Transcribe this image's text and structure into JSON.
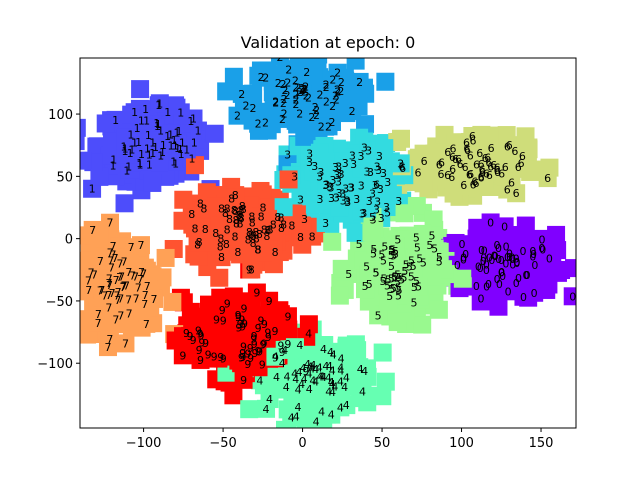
{
  "chart_data": {
    "type": "scatter",
    "title": "Validation at epoch: 0",
    "xlabel": "",
    "ylabel": "",
    "xlim": [
      -140,
      172
    ],
    "ylim": [
      -152,
      145
    ],
    "xticks": [
      -100,
      -50,
      0,
      50,
      100,
      150
    ],
    "yticks": [
      -100,
      -50,
      0,
      50,
      100
    ],
    "xtick_labels": [
      "−100",
      "−50",
      "0",
      "50",
      "100",
      "150"
    ],
    "ytick_labels": [
      "−100",
      "−50",
      "0",
      "50",
      "100"
    ],
    "grid": false,
    "series": [
      {
        "label": "0",
        "color": "#8000ff",
        "center": [
          128,
          -20
        ],
        "spread": [
          28,
          24
        ],
        "points": 60
      },
      {
        "label": "1",
        "color": "#4d4dfb",
        "center": [
          -95,
          75
        ],
        "spread": [
          30,
          25
        ],
        "points": 60
      },
      {
        "label": "2",
        "color": "#1aa0e8",
        "center": [
          0,
          115
        ],
        "spread": [
          30,
          25
        ],
        "points": 60
      },
      {
        "label": "3",
        "color": "#33dbe0",
        "center": [
          25,
          45
        ],
        "spread": [
          30,
          28
        ],
        "points": 60
      },
      {
        "label": "4",
        "color": "#66ffb2",
        "center": [
          10,
          -110
        ],
        "spread": [
          28,
          28
        ],
        "points": 60
      },
      {
        "label": "5",
        "color": "#99f98f",
        "center": [
          60,
          -25
        ],
        "spread": [
          25,
          32
        ],
        "points": 60
      },
      {
        "label": "6",
        "color": "#cfdd7a",
        "center": [
          105,
          60
        ],
        "spread": [
          32,
          20
        ],
        "points": 60
      },
      {
        "label": "7",
        "color": "#ffa156",
        "center": [
          -115,
          -35
        ],
        "spread": [
          22,
          35
        ],
        "points": 60
      },
      {
        "label": "8",
        "color": "#ff5330",
        "center": [
          -35,
          10
        ],
        "spread": [
          30,
          25
        ],
        "points": 60
      },
      {
        "label": "9",
        "color": "#ff0000",
        "center": [
          -40,
          -80
        ],
        "spread": [
          32,
          28
        ],
        "points": 60
      }
    ]
  }
}
